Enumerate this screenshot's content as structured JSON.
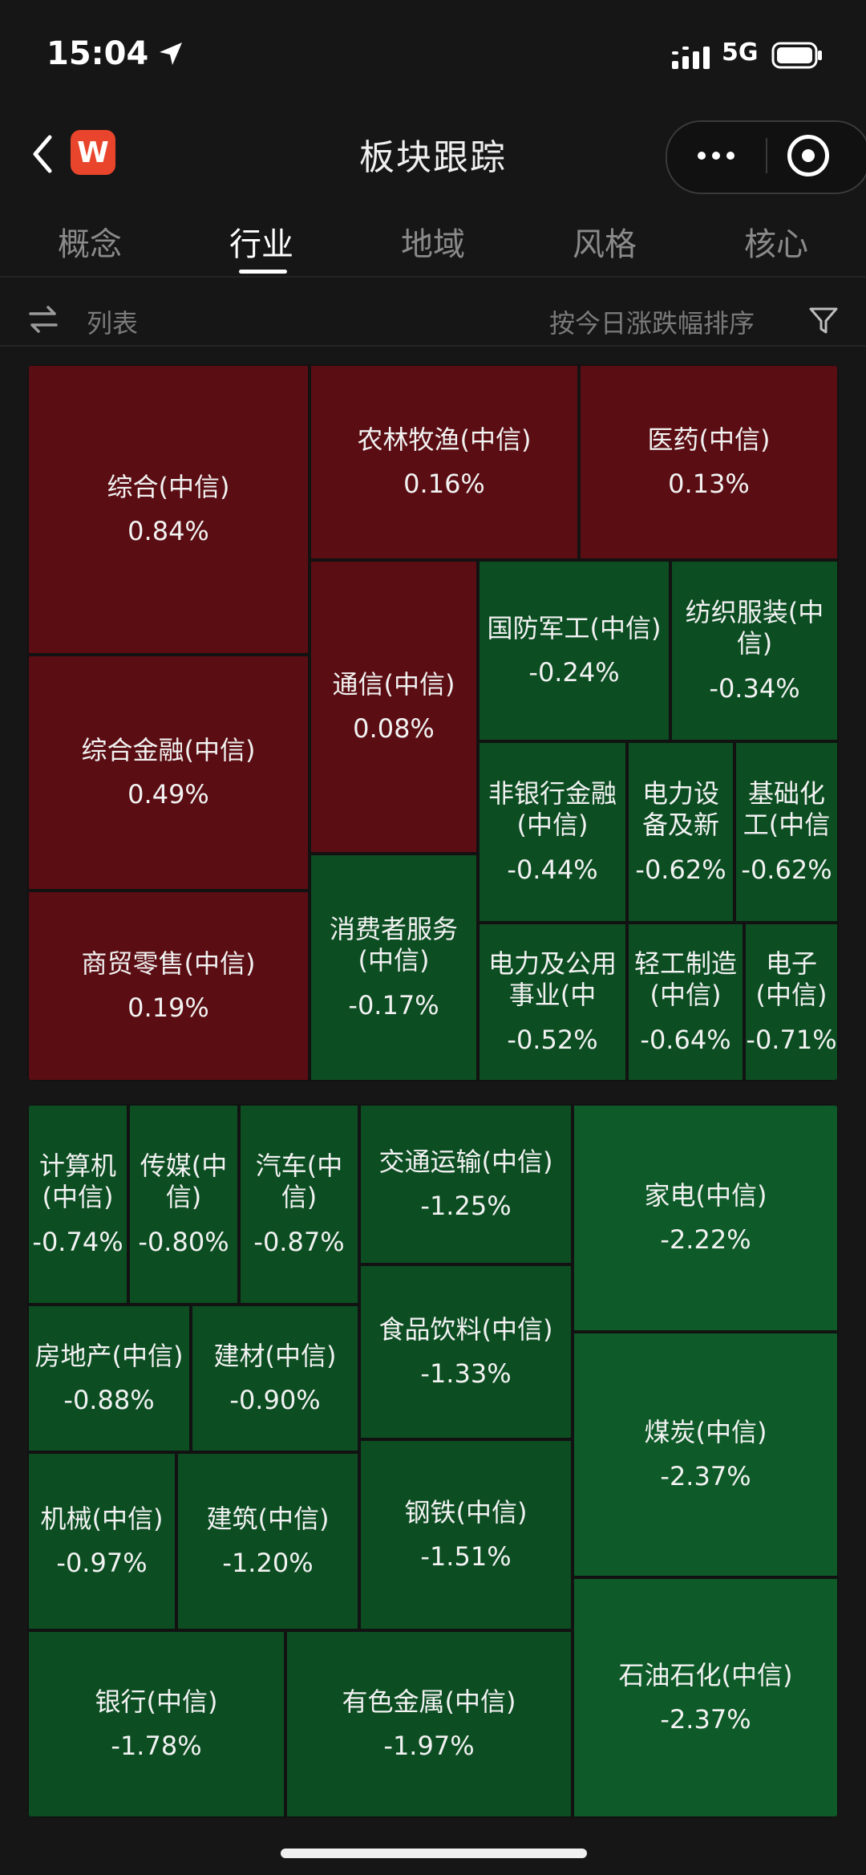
{
  "status_bar": {
    "time": "15:04",
    "network": "5G"
  },
  "header": {
    "title": "板块跟踪",
    "logo_text": "W"
  },
  "tabs": [
    {
      "label": "概念",
      "active": false
    },
    {
      "label": "行业",
      "active": true
    },
    {
      "label": "地域",
      "active": false
    },
    {
      "label": "风格",
      "active": false
    },
    {
      "label": "核心",
      "active": false
    }
  ],
  "toolbar": {
    "list_label": "列表",
    "sort_label": "按今日涨跌幅排序"
  },
  "colors": {
    "up": "#5a0d12",
    "down": "#0c4d22",
    "accent_logo": "#e8452c"
  },
  "treemap_top": [
    {
      "name": "综合(中信)",
      "change": "0.84%"
    },
    {
      "name": "农林牧渔(中信)",
      "change": "0.16%"
    },
    {
      "name": "医药(中信)",
      "change": "0.13%"
    },
    {
      "name": "综合金融(中信)",
      "change": "0.49%"
    },
    {
      "name": "通信(中信)",
      "change": "0.08%"
    },
    {
      "name": "国防军工(中信)",
      "change": "-0.24%"
    },
    {
      "name": "纺织服装(中信)",
      "change": "-0.34%"
    },
    {
      "name": "商贸零售(中信)",
      "change": "0.19%"
    },
    {
      "name": "消费者服务(中信)",
      "change": "-0.17%"
    },
    {
      "name": "非银行金融(中信)",
      "change": "-0.44%"
    },
    {
      "name": "电力设备及新",
      "change": "-0.62%"
    },
    {
      "name": "基础化工(中信",
      "change": "-0.62%"
    },
    {
      "name": "电力及公用事业(中",
      "change": "-0.52%"
    },
    {
      "name": "轻工制造(中信)",
      "change": "-0.64%"
    },
    {
      "name": "电子(中信)",
      "change": "-0.71%"
    }
  ],
  "treemap_bottom": [
    {
      "name": "计算机(中信)",
      "change": "-0.74%"
    },
    {
      "name": "传媒(中信)",
      "change": "-0.80%"
    },
    {
      "name": "汽车(中信)",
      "change": "-0.87%"
    },
    {
      "name": "交通运输(中信)",
      "change": "-1.25%"
    },
    {
      "name": "家电(中信)",
      "change": "-2.22%"
    },
    {
      "name": "房地产(中信)",
      "change": "-0.88%"
    },
    {
      "name": "建材(中信)",
      "change": "-0.90%"
    },
    {
      "name": "食品饮料(中信)",
      "change": "-1.33%"
    },
    {
      "name": "煤炭(中信)",
      "change": "-2.37%"
    },
    {
      "name": "机械(中信)",
      "change": "-0.97%"
    },
    {
      "name": "建筑(中信)",
      "change": "-1.20%"
    },
    {
      "name": "钢铁(中信)",
      "change": "-1.51%"
    },
    {
      "name": "石油石化(中信)",
      "change": "-2.37%"
    },
    {
      "name": "银行(中信)",
      "change": "-1.78%"
    },
    {
      "name": "有色金属(中信)",
      "change": "-1.97%"
    }
  ]
}
